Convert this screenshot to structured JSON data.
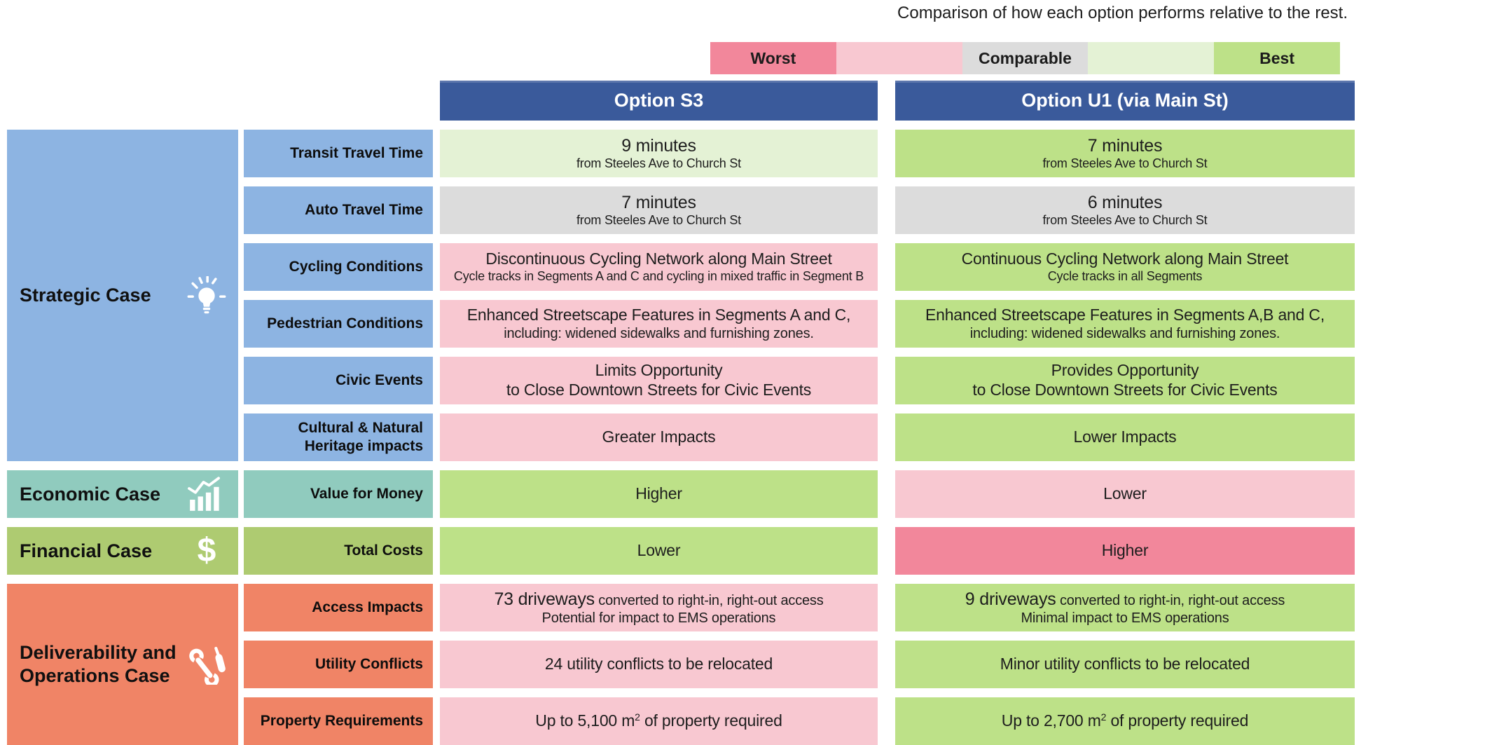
{
  "title": "Comparison of how each option performs relative to the rest.",
  "legend": [
    {
      "label": "Worst",
      "color": "#F2879B"
    },
    {
      "label": "",
      "color": "#F8C8D1"
    },
    {
      "label": "Comparable",
      "color": "#DCDCDC"
    },
    {
      "label": "",
      "color": "#E4F2D5"
    },
    {
      "label": "Best",
      "color": "#BDE188"
    }
  ],
  "options": [
    "Option S3",
    "Option U1 (via Main St)"
  ],
  "header_color": "#3A5A9B",
  "rating_colors": {
    "worst": "#F2879B",
    "poor": "#F8C8D1",
    "comparable": "#DCDCDC",
    "good": "#E4F2D5",
    "best": "#BDE188"
  },
  "chart_data": {
    "type": "table",
    "title": "Comparison of how each option performs relative to the rest.",
    "columns": [
      "Option S3",
      "Option U1 (via Main St)"
    ],
    "legend_scale": [
      "Worst",
      "Comparable",
      "Best"
    ],
    "cases": [
      {
        "name": "Strategic Case",
        "icon": "lightbulb-icon",
        "color": "#8DB4E2",
        "rows": [
          {
            "criterion": "Transit Travel Time",
            "cells": [
              {
                "rating": "good",
                "lines": [
                  {
                    "parts": [
                      {
                        "t": "9 minutes",
                        "s": "xl"
                      }
                    ]
                  },
                  {
                    "parts": [
                      {
                        "t": "from Steeles Ave to Church St",
                        "s": "sm"
                      }
                    ]
                  }
                ]
              },
              {
                "rating": "best",
                "lines": [
                  {
                    "parts": [
                      {
                        "t": "7 minutes",
                        "s": "xl"
                      }
                    ]
                  },
                  {
                    "parts": [
                      {
                        "t": "from Steeles Ave to Church St",
                        "s": "sm"
                      }
                    ]
                  }
                ]
              }
            ]
          },
          {
            "criterion": "Auto Travel Time",
            "cells": [
              {
                "rating": "comparable",
                "lines": [
                  {
                    "parts": [
                      {
                        "t": "7 minutes",
                        "s": "xl"
                      }
                    ]
                  },
                  {
                    "parts": [
                      {
                        "t": "from Steeles Ave to Church St",
                        "s": "sm"
                      }
                    ]
                  }
                ]
              },
              {
                "rating": "comparable",
                "lines": [
                  {
                    "parts": [
                      {
                        "t": "6 minutes",
                        "s": "xl"
                      }
                    ]
                  },
                  {
                    "parts": [
                      {
                        "t": "from Steeles Ave to Church St",
                        "s": "sm"
                      }
                    ]
                  }
                ]
              }
            ]
          },
          {
            "criterion": "Cycling Conditions",
            "cells": [
              {
                "rating": "poor",
                "lines": [
                  {
                    "parts": [
                      {
                        "t": "Discontinuous Cycling Network along Main Street",
                        "s": "lg"
                      }
                    ]
                  },
                  {
                    "parts": [
                      {
                        "t": "Cycle tracks in Segments A and C and cycling in mixed traffic in Segment B",
                        "s": "sm"
                      }
                    ]
                  }
                ]
              },
              {
                "rating": "best",
                "lines": [
                  {
                    "parts": [
                      {
                        "t": "Continuous Cycling Network along Main Street",
                        "s": "lg"
                      }
                    ]
                  },
                  {
                    "parts": [
                      {
                        "t": "Cycle tracks in all Segments",
                        "s": "sm"
                      }
                    ]
                  }
                ]
              }
            ]
          },
          {
            "criterion": "Pedestrian Conditions",
            "cells": [
              {
                "rating": "poor",
                "lines": [
                  {
                    "parts": [
                      {
                        "t": "Enhanced Streetscape Features in Segments A and C,",
                        "s": "lg"
                      }
                    ]
                  },
                  {
                    "parts": [
                      {
                        "t": "including: widened sidewalks and furnishing zones.",
                        "s": "md"
                      }
                    ]
                  }
                ]
              },
              {
                "rating": "best",
                "lines": [
                  {
                    "parts": [
                      {
                        "t": "Enhanced Streetscape Features in Segments A,B and C,",
                        "s": "lg"
                      }
                    ]
                  },
                  {
                    "parts": [
                      {
                        "t": "including: widened sidewalks and furnishing zones.",
                        "s": "md"
                      }
                    ]
                  }
                ]
              }
            ]
          },
          {
            "criterion": "Civic Events",
            "cells": [
              {
                "rating": "poor",
                "lines": [
                  {
                    "parts": [
                      {
                        "t": "Limits Opportunity",
                        "s": "lg"
                      }
                    ]
                  },
                  {
                    "parts": [
                      {
                        "t": "to Close Downtown Streets for Civic Events",
                        "s": "lg"
                      }
                    ]
                  }
                ]
              },
              {
                "rating": "best",
                "lines": [
                  {
                    "parts": [
                      {
                        "t": "Provides Opportunity",
                        "s": "lg"
                      }
                    ]
                  },
                  {
                    "parts": [
                      {
                        "t": "to Close Downtown Streets for Civic Events",
                        "s": "lg"
                      }
                    ]
                  }
                ]
              }
            ]
          },
          {
            "criterion": "Cultural & Natural Heritage impacts",
            "cells": [
              {
                "rating": "poor",
                "lines": [
                  {
                    "parts": [
                      {
                        "t": "Greater Impacts",
                        "s": "lg"
                      }
                    ]
                  }
                ]
              },
              {
                "rating": "best",
                "lines": [
                  {
                    "parts": [
                      {
                        "t": "Lower Impacts",
                        "s": "lg"
                      }
                    ]
                  }
                ]
              }
            ]
          }
        ]
      },
      {
        "name": "Economic Case",
        "icon": "bar-chart-trend-icon",
        "color": "#90CBBE",
        "rows": [
          {
            "criterion": "Value for Money",
            "cells": [
              {
                "rating": "best",
                "lines": [
                  {
                    "parts": [
                      {
                        "t": "Higher",
                        "s": "lg"
                      }
                    ]
                  }
                ]
              },
              {
                "rating": "poor",
                "lines": [
                  {
                    "parts": [
                      {
                        "t": "Lower",
                        "s": "lg"
                      }
                    ]
                  }
                ]
              }
            ]
          }
        ]
      },
      {
        "name": "Financial Case",
        "icon": "dollar-icon",
        "color": "#AECB71",
        "rows": [
          {
            "criterion": "Total Costs",
            "cells": [
              {
                "rating": "best",
                "lines": [
                  {
                    "parts": [
                      {
                        "t": "Lower",
                        "s": "lg"
                      }
                    ]
                  }
                ]
              },
              {
                "rating": "worst",
                "lines": [
                  {
                    "parts": [
                      {
                        "t": "Higher",
                        "s": "lg"
                      }
                    ]
                  }
                ]
              }
            ]
          }
        ]
      },
      {
        "name": "Deliverability and Operations Case",
        "icon": "tools-icon",
        "color": "#F08466",
        "rows": [
          {
            "criterion": "Access Impacts",
            "cells": [
              {
                "rating": "poor",
                "lines": [
                  {
                    "parts": [
                      {
                        "t": "73 driveways",
                        "s": "xl"
                      },
                      {
                        "t": " converted to right-in, right-out access",
                        "s": "md"
                      }
                    ]
                  },
                  {
                    "parts": [
                      {
                        "t": "Potential for impact to EMS operations",
                        "s": "md"
                      }
                    ]
                  }
                ]
              },
              {
                "rating": "best",
                "lines": [
                  {
                    "parts": [
                      {
                        "t": "9 driveways",
                        "s": "xl"
                      },
                      {
                        "t": " converted to right-in, right-out access",
                        "s": "md"
                      }
                    ]
                  },
                  {
                    "parts": [
                      {
                        "t": "Minimal impact to EMS operations",
                        "s": "md"
                      }
                    ]
                  }
                ]
              }
            ]
          },
          {
            "criterion": "Utility Conflicts",
            "cells": [
              {
                "rating": "poor",
                "lines": [
                  {
                    "parts": [
                      {
                        "t": "24 utility conflicts to be relocated",
                        "s": "lg"
                      }
                    ]
                  }
                ]
              },
              {
                "rating": "best",
                "lines": [
                  {
                    "parts": [
                      {
                        "t": "Minor utility conflicts to be relocated",
                        "s": "lg"
                      }
                    ]
                  }
                ]
              }
            ]
          },
          {
            "criterion": "Property Requirements",
            "cells": [
              {
                "rating": "poor",
                "lines": [
                  {
                    "parts": [
                      {
                        "t": "Up to 5,100 m",
                        "s": "lg"
                      },
                      {
                        "t": "2",
                        "s": "sup"
                      },
                      {
                        "t": " of property required",
                        "s": "lg"
                      }
                    ]
                  }
                ]
              },
              {
                "rating": "best",
                "lines": [
                  {
                    "parts": [
                      {
                        "t": "Up to 2,700 m",
                        "s": "lg"
                      },
                      {
                        "t": "2",
                        "s": "sup"
                      },
                      {
                        "t": " of property required",
                        "s": "lg"
                      }
                    ]
                  }
                ]
              }
            ]
          }
        ]
      }
    ]
  }
}
